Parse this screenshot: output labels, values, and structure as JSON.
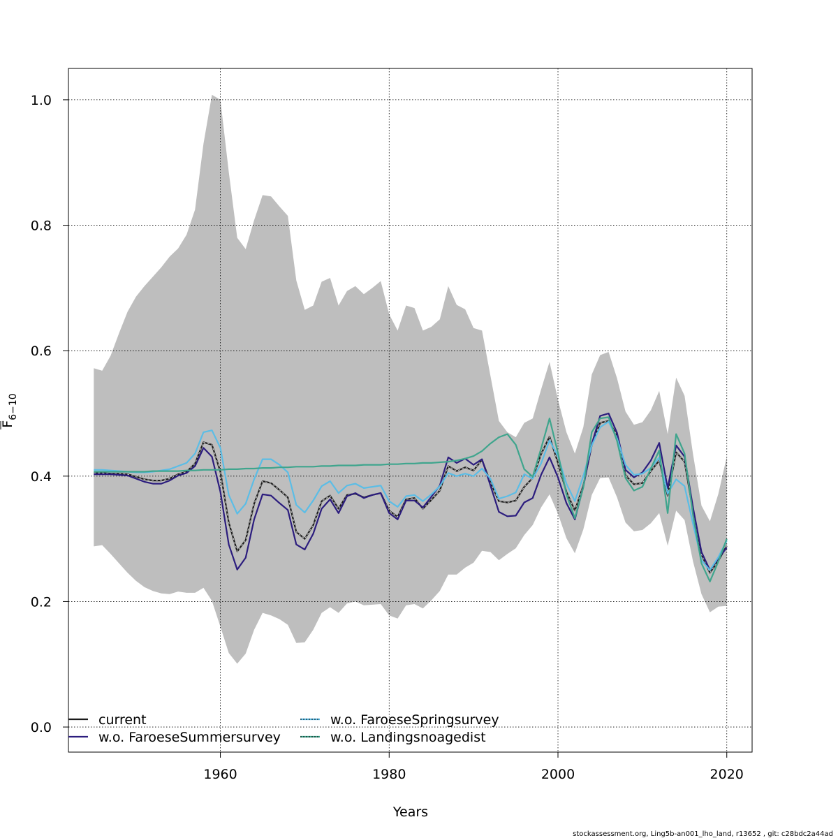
{
  "chart_data": {
    "type": "line",
    "xlabel": "Years",
    "ylabel_main": "F",
    "ylabel_sub": "6−10",
    "xlim": [
      1942,
      2023
    ],
    "ylim": [
      -0.04,
      1.05
    ],
    "xticks": [
      1960,
      1980,
      2000,
      2020
    ],
    "yticks": [
      0.0,
      0.2,
      0.4,
      0.6,
      0.8,
      1.0
    ],
    "ytick_labels": [
      "0.0",
      "0.2",
      "0.4",
      "0.6",
      "0.8",
      "1.0"
    ],
    "grid": true,
    "legend_position": "bottom-left",
    "x": [
      1945,
      1946,
      1947,
      1948,
      1949,
      1950,
      1951,
      1952,
      1953,
      1954,
      1955,
      1956,
      1957,
      1958,
      1959,
      1960,
      1961,
      1962,
      1963,
      1964,
      1965,
      1966,
      1967,
      1968,
      1969,
      1970,
      1971,
      1972,
      1973,
      1974,
      1975,
      1976,
      1977,
      1978,
      1979,
      1980,
      1981,
      1982,
      1983,
      1984,
      1985,
      1986,
      1987,
      1988,
      1989,
      1990,
      1991,
      1992,
      1993,
      1994,
      1995,
      1996,
      1997,
      1998,
      1999,
      2000,
      2001,
      2002,
      2003,
      2004,
      2005,
      2006,
      2007,
      2008,
      2009,
      2010,
      2011,
      2012,
      2013,
      2014,
      2015,
      2016,
      2017,
      2018,
      2019,
      2020
    ],
    "confidence_band": {
      "color": "#bebebe",
      "upper": [
        0.572,
        0.568,
        0.592,
        0.628,
        0.662,
        0.686,
        0.703,
        0.718,
        0.733,
        0.75,
        0.763,
        0.785,
        0.825,
        0.93,
        1.008,
        1.0,
        0.885,
        0.78,
        0.762,
        0.808,
        0.848,
        0.846,
        0.83,
        0.815,
        0.712,
        0.665,
        0.672,
        0.71,
        0.716,
        0.672,
        0.695,
        0.703,
        0.69,
        0.7,
        0.711,
        0.658,
        0.632,
        0.672,
        0.668,
        0.632,
        0.638,
        0.65,
        0.703,
        0.673,
        0.666,
        0.636,
        0.632,
        0.56,
        0.488,
        0.47,
        0.462,
        0.485,
        0.492,
        0.538,
        0.582,
        0.522,
        0.47,
        0.436,
        0.478,
        0.562,
        0.593,
        0.598,
        0.556,
        0.503,
        0.482,
        0.486,
        0.505,
        0.536,
        0.467,
        0.557,
        0.528,
        0.435,
        0.353,
        0.328,
        0.372,
        0.431
      ],
      "lower": [
        0.288,
        0.29,
        0.276,
        0.261,
        0.246,
        0.233,
        0.223,
        0.217,
        0.213,
        0.212,
        0.216,
        0.214,
        0.214,
        0.222,
        0.201,
        0.16,
        0.118,
        0.101,
        0.117,
        0.155,
        0.182,
        0.178,
        0.172,
        0.163,
        0.134,
        0.135,
        0.155,
        0.182,
        0.191,
        0.182,
        0.197,
        0.2,
        0.194,
        0.195,
        0.196,
        0.178,
        0.173,
        0.194,
        0.196,
        0.189,
        0.202,
        0.217,
        0.243,
        0.243,
        0.254,
        0.262,
        0.281,
        0.279,
        0.266,
        0.276,
        0.285,
        0.306,
        0.322,
        0.35,
        0.371,
        0.34,
        0.301,
        0.277,
        0.315,
        0.37,
        0.397,
        0.398,
        0.366,
        0.326,
        0.312,
        0.314,
        0.325,
        0.341,
        0.289,
        0.345,
        0.33,
        0.264,
        0.212,
        0.183,
        0.192,
        0.193
      ]
    },
    "series": [
      {
        "name": "current",
        "legend_label": "current",
        "color": "#1a1a1a",
        "dashed_overlay": false,
        "values": [
          0.405,
          0.405,
          0.404,
          0.404,
          0.403,
          0.399,
          0.395,
          0.393,
          0.393,
          0.396,
          0.403,
          0.407,
          0.42,
          0.454,
          0.45,
          0.407,
          0.326,
          0.28,
          0.298,
          0.356,
          0.392,
          0.389,
          0.378,
          0.366,
          0.311,
          0.3,
          0.322,
          0.36,
          0.369,
          0.348,
          0.37,
          0.372,
          0.366,
          0.37,
          0.373,
          0.345,
          0.335,
          0.363,
          0.365,
          0.348,
          0.362,
          0.377,
          0.416,
          0.408,
          0.414,
          0.409,
          0.426,
          0.39,
          0.36,
          0.358,
          0.361,
          0.383,
          0.397,
          0.435,
          0.463,
          0.421,
          0.375,
          0.345,
          0.385,
          0.449,
          0.485,
          0.488,
          0.465,
          0.401,
          0.387,
          0.389,
          0.408,
          0.425,
          0.369,
          0.438,
          0.423,
          0.344,
          0.275,
          0.246,
          0.265,
          0.289
        ]
      },
      {
        "name": "w.o. FaroeseSummersurvey",
        "legend_label": "w.o. FaroeseSummersurvey",
        "color": "#2c1d7e",
        "dashed_overlay": false,
        "values": [
          0.403,
          0.403,
          0.403,
          0.402,
          0.401,
          0.396,
          0.391,
          0.388,
          0.388,
          0.393,
          0.401,
          0.405,
          0.416,
          0.445,
          0.431,
          0.375,
          0.291,
          0.251,
          0.27,
          0.331,
          0.371,
          0.369,
          0.357,
          0.346,
          0.291,
          0.283,
          0.308,
          0.348,
          0.363,
          0.341,
          0.368,
          0.373,
          0.365,
          0.37,
          0.373,
          0.341,
          0.331,
          0.361,
          0.361,
          0.35,
          0.367,
          0.385,
          0.43,
          0.421,
          0.428,
          0.418,
          0.427,
          0.385,
          0.343,
          0.336,
          0.337,
          0.358,
          0.365,
          0.402,
          0.43,
          0.398,
          0.357,
          0.331,
          0.383,
          0.451,
          0.496,
          0.5,
          0.469,
          0.41,
          0.398,
          0.406,
          0.425,
          0.453,
          0.381,
          0.449,
          0.431,
          0.35,
          0.279,
          0.25,
          0.269,
          0.286
        ]
      },
      {
        "name": "w.o. FaroeseSpringsurvey",
        "legend_label": "w.o. FaroeseSpringsurvey",
        "color": "#5bbde6",
        "dashed_overlay": true,
        "values": [
          0.41,
          0.41,
          0.409,
          0.408,
          0.407,
          0.406,
          0.406,
          0.407,
          0.409,
          0.411,
          0.416,
          0.421,
          0.436,
          0.47,
          0.473,
          0.445,
          0.37,
          0.34,
          0.356,
          0.395,
          0.427,
          0.427,
          0.418,
          0.406,
          0.354,
          0.342,
          0.361,
          0.384,
          0.392,
          0.373,
          0.385,
          0.388,
          0.381,
          0.383,
          0.385,
          0.36,
          0.351,
          0.368,
          0.37,
          0.36,
          0.371,
          0.384,
          0.405,
          0.4,
          0.404,
          0.4,
          0.412,
          0.396,
          0.364,
          0.368,
          0.374,
          0.403,
          0.396,
          0.42,
          0.457,
          0.432,
          0.388,
          0.36,
          0.4,
          0.449,
          0.478,
          0.487,
          0.46,
          0.418,
          0.402,
          0.404,
          0.413,
          0.43,
          0.372,
          0.395,
          0.384,
          0.324,
          0.266,
          0.25,
          0.271,
          0.297
        ]
      },
      {
        "name": "w.o. Landingsnoagedist",
        "legend_label": "w.o. Landingsnoagedist",
        "color": "#3fa58d",
        "dashed_overlay": true,
        "values": [
          0.407,
          0.407,
          0.407,
          0.407,
          0.407,
          0.407,
          0.407,
          0.408,
          0.408,
          0.408,
          0.408,
          0.409,
          0.409,
          0.41,
          0.41,
          0.41,
          0.411,
          0.411,
          0.412,
          0.412,
          0.413,
          0.413,
          0.414,
          0.414,
          0.415,
          0.415,
          0.415,
          0.416,
          0.416,
          0.417,
          0.417,
          0.417,
          0.418,
          0.418,
          0.418,
          0.419,
          0.419,
          0.42,
          0.42,
          0.421,
          0.421,
          0.422,
          0.423,
          0.425,
          0.428,
          0.432,
          0.44,
          0.452,
          0.462,
          0.467,
          0.45,
          0.411,
          0.399,
          0.444,
          0.492,
          0.437,
          0.371,
          0.333,
          0.382,
          0.47,
          0.492,
          0.494,
          0.456,
          0.397,
          0.377,
          0.383,
          0.412,
          0.441,
          0.341,
          0.467,
          0.436,
          0.338,
          0.261,
          0.232,
          0.264,
          0.3
        ]
      }
    ],
    "footer": "stockassessment.org, Ling5b-an001_lho_land, r13652 , git: c28bdc2a44ad"
  }
}
